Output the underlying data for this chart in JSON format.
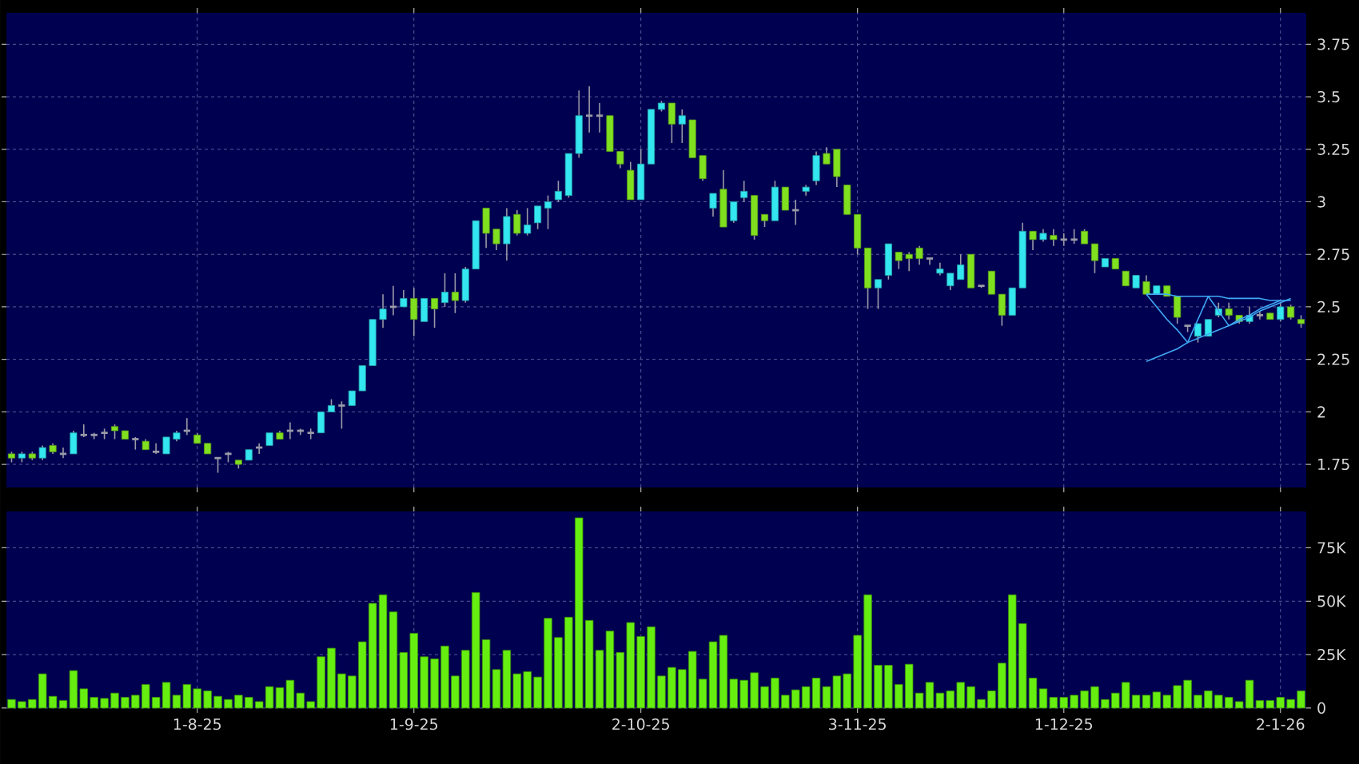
{
  "chart_data": [
    {
      "type": "candlestick",
      "categories": [
        null,
        null,
        null,
        null,
        null,
        null,
        null,
        null,
        null,
        null,
        null,
        null,
        null,
        null,
        null,
        null,
        null,
        null,
        null,
        null,
        null,
        null,
        null,
        null,
        null,
        null,
        null,
        null,
        null,
        null,
        null,
        null,
        null,
        null,
        null,
        null,
        null,
        null,
        null,
        null,
        null,
        null,
        null,
        null,
        null,
        null,
        null,
        null,
        null,
        null,
        null,
        null,
        null,
        null,
        null,
        null,
        null,
        null,
        null,
        null,
        null,
        null,
        null,
        null,
        null,
        null,
        null,
        null,
        null,
        null,
        null,
        null,
        null,
        null,
        null,
        null,
        null,
        null,
        null,
        null,
        null,
        null,
        null,
        null,
        null,
        null,
        null,
        null,
        null,
        null,
        null,
        null,
        null,
        null,
        null,
        null,
        null,
        null,
        null,
        null,
        null,
        null,
        null,
        null,
        null,
        null,
        null,
        null,
        null,
        null,
        null,
        null,
        null,
        null,
        null,
        null,
        null,
        null,
        null,
        null,
        null,
        null,
        null,
        null,
        null,
        null
      ],
      "ohlc": [
        [
          1.8,
          1.81,
          1.76,
          1.78
        ],
        [
          1.78,
          1.81,
          1.76,
          1.8
        ],
        [
          1.8,
          1.81,
          1.77,
          1.78
        ],
        [
          1.78,
          1.84,
          1.77,
          1.83
        ],
        [
          1.84,
          1.85,
          1.8,
          1.81
        ],
        [
          1.8,
          1.83,
          1.78,
          1.8
        ],
        [
          1.8,
          1.91,
          1.8,
          1.9
        ],
        [
          1.89,
          1.94,
          1.88,
          1.89
        ],
        [
          1.89,
          1.9,
          1.87,
          1.89
        ],
        [
          1.9,
          1.92,
          1.87,
          1.9
        ],
        [
          1.93,
          1.94,
          1.87,
          1.91
        ],
        [
          1.91,
          1.91,
          1.87,
          1.87
        ],
        [
          1.87,
          1.88,
          1.82,
          1.87
        ],
        [
          1.86,
          1.87,
          1.82,
          1.82
        ],
        [
          1.81,
          1.85,
          1.8,
          1.81
        ],
        [
          1.8,
          1.88,
          1.8,
          1.88
        ],
        [
          1.87,
          1.91,
          1.86,
          1.9
        ],
        [
          1.91,
          1.97,
          1.89,
          1.91
        ],
        [
          1.89,
          1.9,
          1.85,
          1.85
        ],
        [
          1.85,
          1.85,
          1.8,
          1.8
        ],
        [
          1.78,
          1.78,
          1.71,
          1.78
        ],
        [
          1.8,
          1.81,
          1.76,
          1.8
        ],
        [
          1.77,
          1.77,
          1.73,
          1.75
        ],
        [
          1.77,
          1.82,
          1.77,
          1.82
        ],
        [
          1.83,
          1.85,
          1.8,
          1.83
        ],
        [
          1.84,
          1.9,
          1.84,
          1.9
        ],
        [
          1.9,
          1.91,
          1.87,
          1.87
        ],
        [
          1.91,
          1.95,
          1.87,
          1.91
        ],
        [
          1.91,
          1.92,
          1.89,
          1.91
        ],
        [
          1.9,
          1.92,
          1.87,
          1.9
        ],
        [
          1.9,
          2.0,
          1.9,
          2.0
        ],
        [
          2.0,
          2.06,
          2.0,
          2.03
        ],
        [
          2.03,
          2.05,
          1.92,
          2.03
        ],
        [
          2.03,
          2.1,
          2.03,
          2.1
        ],
        [
          2.1,
          2.22,
          2.1,
          2.22
        ],
        [
          2.22,
          2.44,
          2.22,
          2.44
        ],
        [
          2.44,
          2.56,
          2.4,
          2.49
        ],
        [
          2.5,
          2.6,
          2.46,
          2.5
        ],
        [
          2.5,
          2.58,
          2.5,
          2.54
        ],
        [
          2.54,
          2.59,
          2.36,
          2.44
        ],
        [
          2.43,
          2.54,
          2.43,
          2.54
        ],
        [
          2.54,
          2.54,
          2.4,
          2.49
        ],
        [
          2.52,
          2.66,
          2.5,
          2.57
        ],
        [
          2.57,
          2.66,
          2.47,
          2.53
        ],
        [
          2.53,
          2.69,
          2.52,
          2.68
        ],
        [
          2.68,
          2.91,
          2.68,
          2.91
        ],
        [
          2.97,
          2.97,
          2.78,
          2.85
        ],
        [
          2.87,
          2.87,
          2.77,
          2.8
        ],
        [
          2.8,
          2.97,
          2.72,
          2.93
        ],
        [
          2.94,
          2.96,
          2.84,
          2.85
        ],
        [
          2.85,
          2.97,
          2.84,
          2.89
        ],
        [
          2.9,
          2.98,
          2.87,
          2.98
        ],
        [
          2.97,
          3.03,
          2.87,
          3.0
        ],
        [
          3.01,
          3.1,
          3.0,
          3.05
        ],
        [
          3.03,
          3.23,
          3.02,
          3.23
        ],
        [
          3.23,
          3.53,
          3.21,
          3.41
        ],
        [
          3.41,
          3.55,
          3.33,
          3.41
        ],
        [
          3.41,
          3.47,
          3.33,
          3.41
        ],
        [
          3.41,
          3.41,
          3.24,
          3.24
        ],
        [
          3.24,
          3.24,
          3.16,
          3.18
        ],
        [
          3.15,
          3.19,
          3.01,
          3.01
        ],
        [
          3.01,
          3.25,
          3.01,
          3.18
        ],
        [
          3.18,
          3.44,
          3.18,
          3.44
        ],
        [
          3.44,
          3.48,
          3.43,
          3.47
        ],
        [
          3.47,
          3.47,
          3.28,
          3.37
        ],
        [
          3.37,
          3.44,
          3.28,
          3.41
        ],
        [
          3.39,
          3.39,
          3.21,
          3.21
        ],
        [
          3.22,
          3.22,
          3.1,
          3.11
        ],
        [
          2.97,
          3.04,
          2.93,
          3.04
        ],
        [
          3.06,
          3.15,
          2.88,
          2.88
        ],
        [
          2.91,
          3.0,
          2.9,
          3.0
        ],
        [
          3.02,
          3.1,
          3.0,
          3.05
        ],
        [
          3.03,
          3.03,
          2.82,
          2.84
        ],
        [
          2.94,
          2.94,
          2.88,
          2.91
        ],
        [
          2.91,
          3.1,
          2.91,
          3.07
        ],
        [
          3.07,
          3.07,
          2.96,
          2.96
        ],
        [
          2.96,
          3.01,
          2.89,
          2.96
        ],
        [
          3.05,
          3.08,
          3.03,
          3.07
        ],
        [
          3.1,
          3.24,
          3.08,
          3.22
        ],
        [
          3.23,
          3.26,
          3.18,
          3.18
        ],
        [
          3.25,
          3.25,
          3.07,
          3.12
        ],
        [
          3.08,
          3.08,
          2.94,
          2.94
        ],
        [
          2.94,
          2.94,
          2.75,
          2.78
        ],
        [
          2.78,
          2.78,
          2.49,
          2.59
        ],
        [
          2.59,
          2.63,
          2.49,
          2.63
        ],
        [
          2.65,
          2.8,
          2.63,
          2.8
        ],
        [
          2.76,
          2.76,
          2.68,
          2.72
        ],
        [
          2.75,
          2.76,
          2.67,
          2.73
        ],
        [
          2.78,
          2.79,
          2.7,
          2.73
        ],
        [
          2.73,
          2.73,
          2.7,
          2.73
        ],
        [
          2.66,
          2.71,
          2.65,
          2.68
        ],
        [
          2.6,
          2.66,
          2.58,
          2.66
        ],
        [
          2.63,
          2.75,
          2.63,
          2.7
        ],
        [
          2.75,
          2.75,
          2.59,
          2.59
        ],
        [
          2.6,
          2.6,
          2.59,
          2.6
        ],
        [
          2.67,
          2.67,
          2.56,
          2.56
        ],
        [
          2.56,
          2.56,
          2.41,
          2.46
        ],
        [
          2.46,
          2.59,
          2.46,
          2.59
        ],
        [
          2.59,
          2.9,
          2.59,
          2.86
        ],
        [
          2.86,
          2.86,
          2.77,
          2.82
        ],
        [
          2.82,
          2.87,
          2.81,
          2.85
        ],
        [
          2.84,
          2.87,
          2.79,
          2.82
        ],
        [
          2.82,
          2.85,
          2.79,
          2.82
        ],
        [
          2.82,
          2.87,
          2.8,
          2.82
        ],
        [
          2.86,
          2.87,
          2.8,
          2.8
        ],
        [
          2.8,
          2.8,
          2.66,
          2.72
        ],
        [
          2.69,
          2.73,
          2.69,
          2.73
        ],
        [
          2.73,
          2.73,
          2.68,
          2.68
        ],
        [
          2.67,
          2.67,
          2.6,
          2.6
        ],
        [
          2.59,
          2.65,
          2.59,
          2.65
        ],
        [
          2.62,
          2.65,
          2.56,
          2.56
        ],
        [
          2.56,
          2.6,
          2.56,
          2.6
        ],
        [
          2.6,
          2.6,
          2.55,
          2.55
        ],
        [
          2.55,
          2.55,
          2.42,
          2.45
        ],
        [
          2.41,
          2.41,
          2.38,
          2.41
        ],
        [
          2.36,
          2.42,
          2.33,
          2.42
        ],
        [
          2.36,
          2.44,
          2.36,
          2.44
        ],
        [
          2.46,
          2.52,
          2.45,
          2.49
        ],
        [
          2.49,
          2.52,
          2.44,
          2.46
        ],
        [
          2.46,
          2.46,
          2.42,
          2.43
        ],
        [
          2.43,
          2.5,
          2.42,
          2.46
        ],
        [
          2.46,
          2.48,
          2.44,
          2.46
        ],
        [
          2.47,
          2.47,
          2.44,
          2.44
        ],
        [
          2.44,
          2.52,
          2.43,
          2.5
        ],
        [
          2.5,
          2.51,
          2.44,
          2.45
        ],
        [
          2.44,
          2.46,
          2.4,
          2.42
        ]
      ],
      "colors": [
        "#80e020",
        "#33e6f0",
        "#80e020",
        "#33e6f0",
        "#80e020",
        "#9a9aa8",
        "#33e6f0",
        "#9a9aa8",
        "#9a9aa8",
        "#9a9aa8",
        "#80e020",
        "#80e020",
        "#9a9aa8",
        "#80e020",
        "#9a9aa8",
        "#33e6f0",
        "#33e6f0",
        "#9a9aa8",
        "#80e020",
        "#80e020",
        "#9a9aa8",
        "#9a9aa8",
        "#80e020",
        "#33e6f0",
        "#9a9aa8",
        "#33e6f0",
        "#80e020",
        "#9a9aa8",
        "#9a9aa8",
        "#9a9aa8",
        "#33e6f0",
        "#33e6f0",
        "#9a9aa8",
        "#33e6f0",
        "#33e6f0",
        "#33e6f0",
        "#33e6f0",
        "#9a9aa8",
        "#33e6f0",
        "#80e020",
        "#33e6f0",
        "#80e020",
        "#33e6f0",
        "#80e020",
        "#33e6f0",
        "#33e6f0",
        "#80e020",
        "#80e020",
        "#33e6f0",
        "#80e020",
        "#33e6f0",
        "#33e6f0",
        "#33e6f0",
        "#33e6f0",
        "#33e6f0",
        "#33e6f0",
        "#9a9aa8",
        "#9a9aa8",
        "#80e020",
        "#80e020",
        "#80e020",
        "#33e6f0",
        "#33e6f0",
        "#33e6f0",
        "#80e020",
        "#33e6f0",
        "#80e020",
        "#80e020",
        "#33e6f0",
        "#80e020",
        "#33e6f0",
        "#33e6f0",
        "#80e020",
        "#80e020",
        "#33e6f0",
        "#80e020",
        "#9a9aa8",
        "#33e6f0",
        "#33e6f0",
        "#80e020",
        "#80e020",
        "#80e020",
        "#80e020",
        "#80e020",
        "#33e6f0",
        "#33e6f0",
        "#80e020",
        "#80e020",
        "#80e020",
        "#9a9aa8",
        "#33e6f0",
        "#33e6f0",
        "#33e6f0",
        "#80e020",
        "#9a9aa8",
        "#80e020",
        "#80e020",
        "#33e6f0",
        "#33e6f0",
        "#80e020",
        "#33e6f0",
        "#80e020",
        "#9a9aa8",
        "#9a9aa8",
        "#80e020",
        "#80e020",
        "#33e6f0",
        "#80e020",
        "#80e020",
        "#33e6f0",
        "#80e020",
        "#33e6f0",
        "#80e020",
        "#80e020",
        "#9a9aa8",
        "#33e6f0",
        "#33e6f0",
        "#33e6f0",
        "#80e020",
        "#80e020",
        "#33e6f0",
        "#9a9aa8",
        "#80e020",
        "#33e6f0",
        "#80e020",
        "#80e020"
      ],
      "series": [
        {
          "type": "line",
          "color": "#3fa9f5",
          "values": [
            null,
            null,
            null,
            null,
            null,
            null,
            null,
            null,
            null,
            null,
            null,
            null,
            null,
            null,
            null,
            null,
            null,
            null,
            null,
            null,
            null,
            null,
            null,
            null,
            null,
            null,
            null,
            null,
            null,
            null,
            null,
            null,
            null,
            null,
            null,
            null,
            null,
            null,
            null,
            null,
            null,
            null,
            null,
            null,
            null,
            null,
            null,
            null,
            null,
            null,
            null,
            null,
            null,
            null,
            null,
            null,
            null,
            null,
            null,
            null,
            null,
            null,
            null,
            null,
            null,
            null,
            null,
            null,
            null,
            null,
            null,
            null,
            null,
            null,
            null,
            null,
            null,
            null,
            null,
            null,
            null,
            null,
            null,
            null,
            null,
            null,
            null,
            null,
            null,
            null,
            null,
            null,
            null,
            null,
            null,
            null,
            null,
            null,
            null,
            null,
            null,
            null,
            null,
            null,
            null,
            null,
            null,
            null,
            null,
            null,
            2.24,
            2.26,
            2.28,
            2.3,
            2.33,
            2.35,
            2.37,
            2.39,
            2.41,
            2.43,
            2.45,
            2.48,
            2.5,
            2.52,
            2.54,
            null
          ]
        },
        {
          "type": "line",
          "color": "#3fa9f5",
          "values": [
            null,
            null,
            null,
            null,
            null,
            null,
            null,
            null,
            null,
            null,
            null,
            null,
            null,
            null,
            null,
            null,
            null,
            null,
            null,
            null,
            null,
            null,
            null,
            null,
            null,
            null,
            null,
            null,
            null,
            null,
            null,
            null,
            null,
            null,
            null,
            null,
            null,
            null,
            null,
            null,
            null,
            null,
            null,
            null,
            null,
            null,
            null,
            null,
            null,
            null,
            null,
            null,
            null,
            null,
            null,
            null,
            null,
            null,
            null,
            null,
            null,
            null,
            null,
            null,
            null,
            null,
            null,
            null,
            null,
            null,
            null,
            null,
            null,
            null,
            null,
            null,
            null,
            null,
            null,
            null,
            null,
            null,
            null,
            null,
            null,
            null,
            null,
            null,
            null,
            null,
            null,
            null,
            null,
            null,
            null,
            null,
            null,
            null,
            null,
            null,
            null,
            null,
            null,
            null,
            null,
            null,
            null,
            null,
            null,
            null,
            2.56,
            2.56,
            2.56,
            2.55,
            2.55,
            2.55,
            2.55,
            2.55,
            2.54,
            2.54,
            2.54,
            2.54,
            2.53,
            2.53,
            2.53,
            null
          ]
        },
        {
          "type": "line",
          "color": "#3fa9f5",
          "values": [
            null,
            null,
            null,
            null,
            null,
            null,
            null,
            null,
            null,
            null,
            null,
            null,
            null,
            null,
            null,
            null,
            null,
            null,
            null,
            null,
            null,
            null,
            null,
            null,
            null,
            null,
            null,
            null,
            null,
            null,
            null,
            null,
            null,
            null,
            null,
            null,
            null,
            null,
            null,
            null,
            null,
            null,
            null,
            null,
            null,
            null,
            null,
            null,
            null,
            null,
            null,
            null,
            null,
            null,
            null,
            null,
            null,
            null,
            null,
            null,
            null,
            null,
            null,
            null,
            null,
            null,
            null,
            null,
            null,
            null,
            null,
            null,
            null,
            null,
            null,
            null,
            null,
            null,
            null,
            null,
            null,
            null,
            null,
            null,
            null,
            null,
            null,
            null,
            null,
            null,
            null,
            null,
            null,
            null,
            null,
            null,
            null,
            null,
            null,
            null,
            null,
            null,
            null,
            null,
            null,
            null,
            null,
            null,
            null,
            null,
            2.56,
            2.5,
            2.44,
            2.39,
            2.33,
            2.44,
            2.55,
            2.48,
            2.41,
            2.44,
            2.46,
            2.49,
            2.51,
            2.53,
            null,
            null
          ]
        }
      ],
      "ylim": [
        1.64,
        3.9
      ],
      "yticks": [
        1.75,
        2,
        2.25,
        2.5,
        2.75,
        3,
        3.25,
        3.5,
        3.75
      ],
      "grid": true
    },
    {
      "type": "bar",
      "categories": [
        null,
        null,
        null,
        null,
        null,
        null,
        null,
        null,
        null,
        null,
        null,
        null,
        null,
        null,
        null,
        null,
        null,
        null,
        "1-8-25",
        null,
        null,
        null,
        null,
        null,
        null,
        null,
        null,
        null,
        null,
        null,
        null,
        null,
        null,
        null,
        null,
        null,
        null,
        null,
        null,
        "1-9-25",
        null,
        null,
        null,
        null,
        null,
        null,
        null,
        null,
        null,
        null,
        null,
        null,
        null,
        null,
        null,
        null,
        null,
        null,
        null,
        null,
        null,
        "2-10-25",
        null,
        null,
        null,
        null,
        null,
        null,
        null,
        null,
        null,
        null,
        null,
        null,
        null,
        null,
        null,
        null,
        null,
        null,
        null,
        null,
        "3-11-25",
        null,
        null,
        null,
        null,
        null,
        null,
        null,
        null,
        null,
        null,
        null,
        null,
        null,
        null,
        null,
        null,
        null,
        null,
        null,
        "1-12-25",
        null,
        null,
        null,
        null,
        null,
        null,
        null,
        null,
        null,
        null,
        null,
        null,
        null,
        null,
        null,
        null,
        null,
        null,
        null,
        null,
        "2-1-26",
        null,
        null
      ],
      "values": [
        4000,
        3000,
        4000,
        16000,
        5500,
        3500,
        17500,
        9000,
        5000,
        4500,
        7000,
        5000,
        6000,
        11000,
        5000,
        12000,
        6000,
        11000,
        9000,
        8000,
        5500,
        4000,
        6000,
        5000,
        3000,
        10000,
        9500,
        13000,
        7000,
        3000,
        24000,
        28000,
        16000,
        15000,
        31000,
        49000,
        53000,
        45000,
        26000,
        35000,
        24000,
        23000,
        29000,
        15000,
        27000,
        54000,
        32000,
        18000,
        27000,
        16000,
        17000,
        14500,
        42000,
        33000,
        42500,
        89000,
        41000,
        27000,
        36000,
        26000,
        40000,
        33500,
        38000,
        15000,
        19000,
        18000,
        26500,
        13500,
        31000,
        34000,
        13500,
        13000,
        16500,
        10000,
        14000,
        6000,
        8500,
        10000,
        14000,
        10000,
        15000,
        16000,
        34000,
        53000,
        20000,
        20000,
        11000,
        20500,
        7000,
        12000,
        7000,
        8000,
        12000,
        10000,
        4000,
        8000,
        21000,
        53000,
        39500,
        14000,
        9000,
        5000,
        5000,
        6000,
        8000,
        10000,
        4000,
        7000,
        12000,
        6000,
        6000,
        7500,
        6000,
        10500,
        13000,
        6000,
        8000,
        6000,
        5000,
        3000,
        13000,
        3500,
        3500,
        5000,
        4000,
        8000
      ],
      "color": "#66ee11",
      "ylim": [
        0,
        92000
      ],
      "yticks": [
        {
          "value": 0,
          "label": "0"
        },
        {
          "value": 25000,
          "label": "25K"
        },
        {
          "value": 50000,
          "label": "50K"
        },
        {
          "value": 75000,
          "label": "75K"
        }
      ],
      "grid": true
    }
  ]
}
